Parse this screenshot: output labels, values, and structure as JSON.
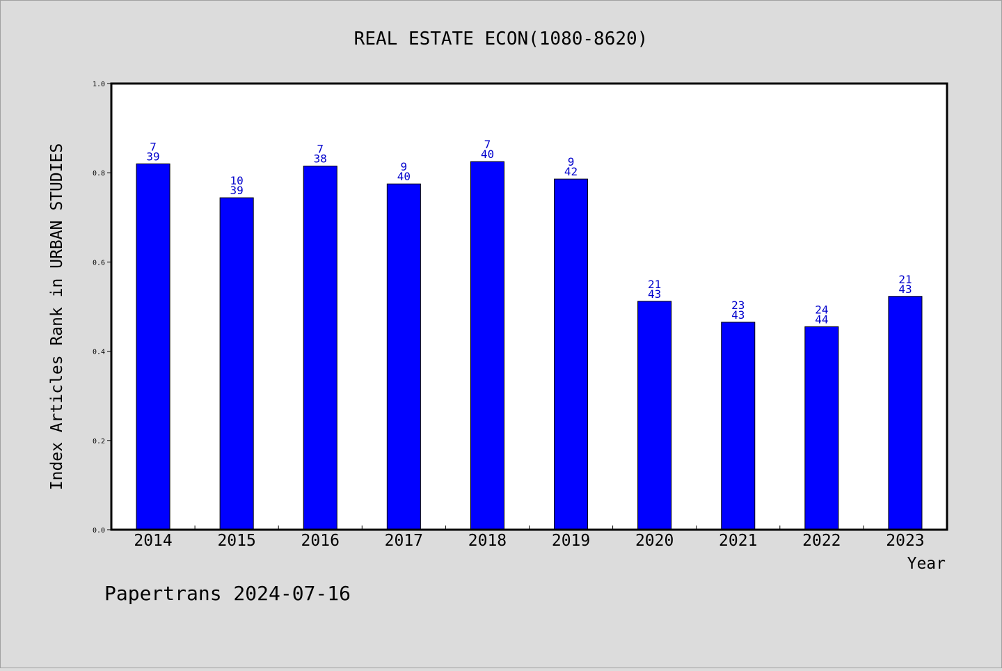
{
  "chart_data": {
    "type": "bar",
    "title": "REAL ESTATE ECON(1080-8620)",
    "xlabel": "Year",
    "ylabel": "Index Articles Rank in URBAN STUDIES",
    "categories": [
      "2014",
      "2015",
      "2016",
      "2017",
      "2018",
      "2019",
      "2020",
      "2021",
      "2022",
      "2023"
    ],
    "values": [
      0.82,
      0.744,
      0.815,
      0.775,
      0.825,
      0.786,
      0.512,
      0.465,
      0.455,
      0.523
    ],
    "rank": [
      "7",
      "10",
      "7",
      "9",
      "7",
      "9",
      "21",
      "23",
      "24",
      "21"
    ],
    "total": [
      "39",
      "39",
      "38",
      "40",
      "40",
      "42",
      "43",
      "43",
      "44",
      "43"
    ],
    "ylim": [
      0,
      1.0
    ],
    "yticks": [
      "0.0",
      "0.2",
      "0.4",
      "0.6",
      "0.8",
      "1.0"
    ],
    "grid": false,
    "bar_color": "#0000ff",
    "label_color": "#0000cc"
  },
  "footer": {
    "source": "Papertrans 2024-07-16"
  }
}
